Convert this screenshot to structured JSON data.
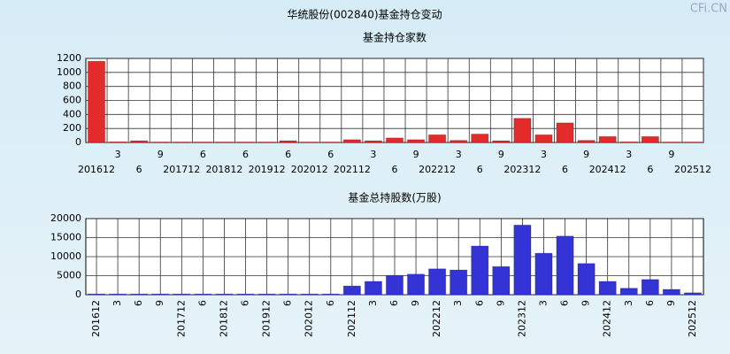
{
  "title": "华统股份(002840)基金持仓变动",
  "watermark": "CFi.CN",
  "chart_data": [
    {
      "type": "bar",
      "title": "基金持仓家数",
      "color": "#e32b2b",
      "categories": [
        "201612",
        "3",
        "6",
        "9",
        "201712",
        "6",
        "201812",
        "6",
        "201912",
        "6",
        "202012",
        "6",
        "202112",
        "3",
        "6",
        "9",
        "202212",
        "3",
        "6",
        "9",
        "202312",
        "3",
        "6",
        "9",
        "202412",
        "3",
        "6",
        "9",
        "202512"
      ],
      "values": [
        1160,
        10,
        25,
        8,
        8,
        8,
        8,
        8,
        8,
        25,
        8,
        8,
        40,
        25,
        65,
        40,
        110,
        30,
        120,
        25,
        345,
        110,
        280,
        30,
        85,
        10,
        85,
        8,
        8
      ],
      "ylim": [
        0,
        1200
      ],
      "yticks": [
        0,
        200,
        400,
        600,
        800,
        1000,
        1200
      ],
      "grid": true
    },
    {
      "type": "bar",
      "title": "基金总持股数(万股)",
      "color": "#3333d6",
      "categories": [
        "201612",
        "3",
        "6",
        "9",
        "201712",
        "6",
        "201812",
        "6",
        "201912",
        "6",
        "202012",
        "6",
        "202112",
        "3",
        "6",
        "9",
        "202212",
        "3",
        "6",
        "9",
        "202312",
        "3",
        "6",
        "9",
        "202412",
        "3",
        "6",
        "9",
        "202512"
      ],
      "values": [
        200,
        200,
        200,
        200,
        200,
        200,
        200,
        200,
        200,
        200,
        200,
        200,
        2300,
        3500,
        5100,
        5400,
        6800,
        6500,
        12800,
        7400,
        18300,
        10900,
        15400,
        8200,
        3500,
        1700,
        4000,
        1400,
        500
      ],
      "ylim": [
        0,
        20000
      ],
      "yticks": [
        0,
        5000,
        10000,
        15000,
        20000
      ],
      "grid": true
    }
  ]
}
